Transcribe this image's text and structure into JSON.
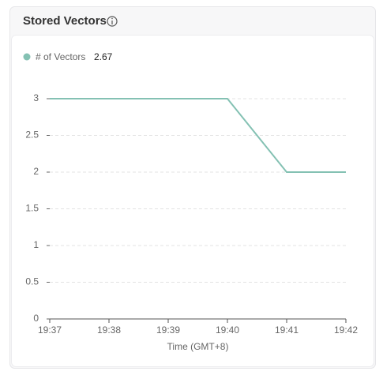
{
  "header": {
    "title": "Stored Vectors"
  },
  "chart_data": {
    "type": "line",
    "categories": [
      "19:37",
      "19:38",
      "19:39",
      "19:40",
      "19:41",
      "19:42"
    ],
    "series": [
      {
        "name": "# of Vectors",
        "color": "#84c1b3",
        "values": [
          3,
          3,
          3,
          3,
          2,
          2
        ]
      }
    ],
    "legend_value": 2.67,
    "x_label": "Time (GMT+8)",
    "ylim": [
      0,
      3
    ],
    "yticks": [
      0,
      0.5,
      1,
      1.5,
      2,
      2.5,
      3
    ],
    "grid": true
  }
}
